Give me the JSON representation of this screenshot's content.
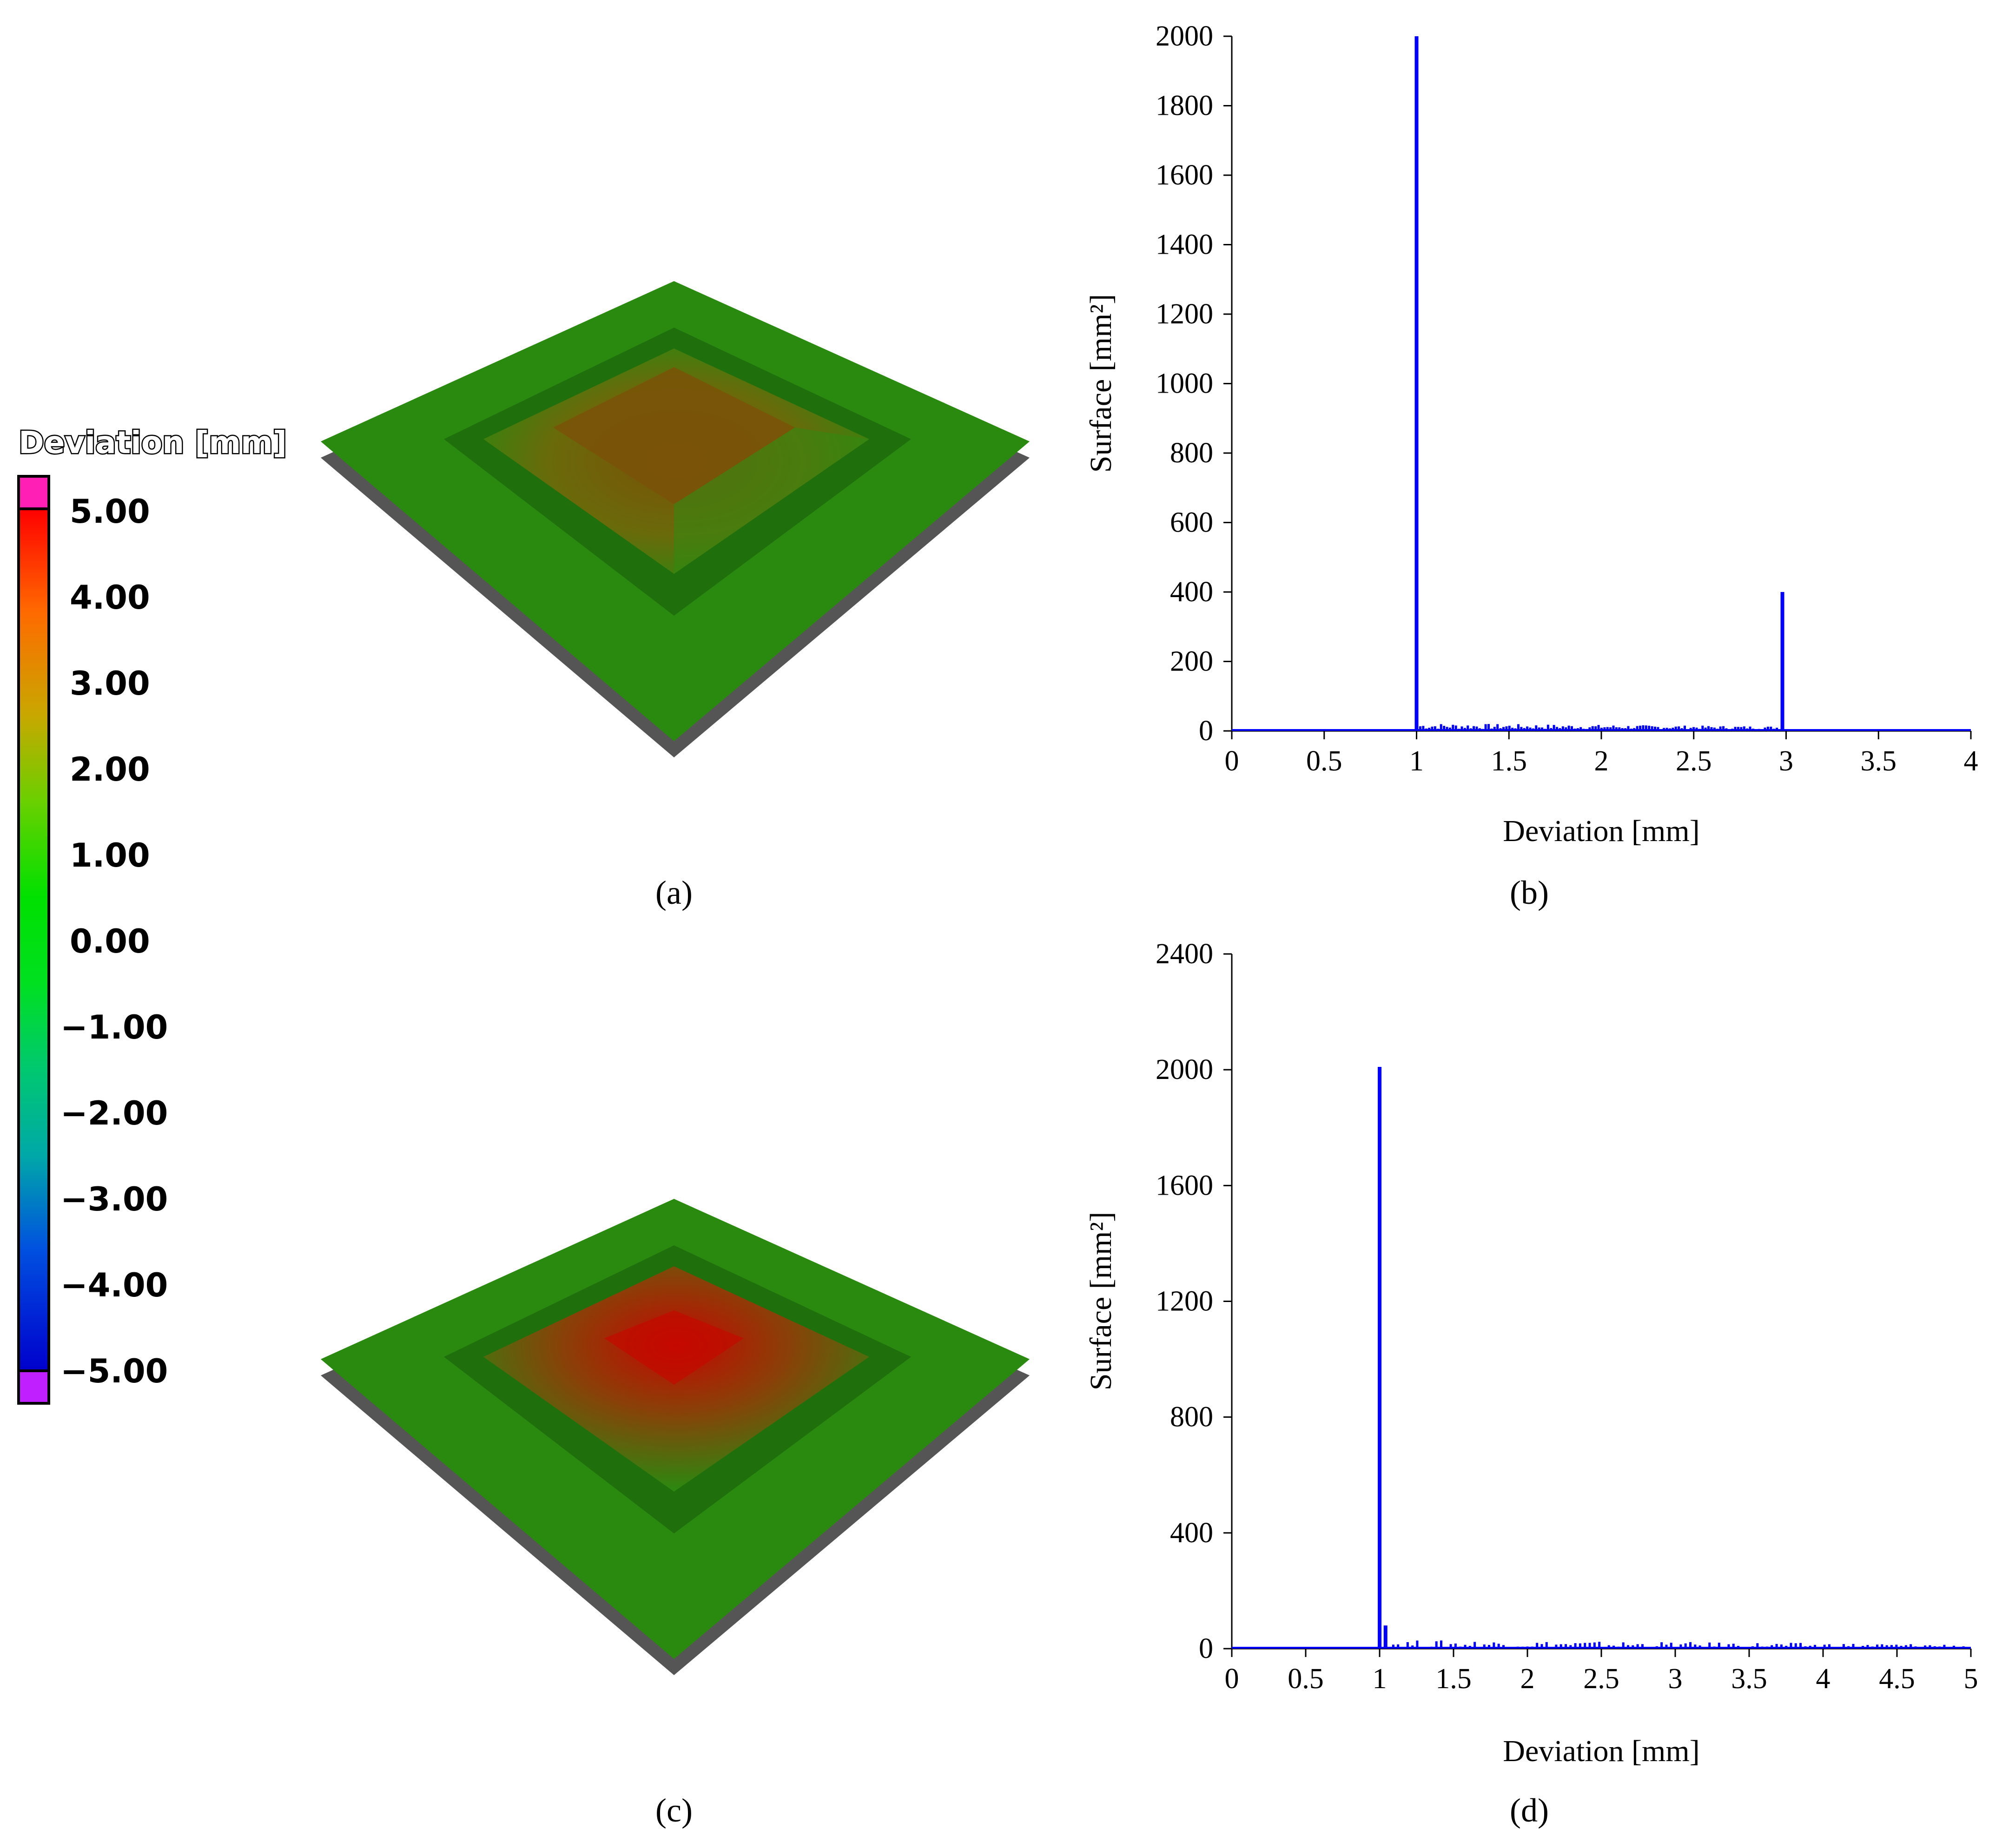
{
  "colorbar": {
    "title": "Deviation [mm]",
    "ticks": [
      "5.00",
      "4.00",
      "3.00",
      "2.00",
      "1.00",
      "0.00",
      "−1.00",
      "−2.00",
      "−3.00",
      "−4.00",
      "−5.00"
    ],
    "colors": {
      "over": "#ff1fb4",
      "under": "#c020ff",
      "gradient": [
        "#ff0000",
        "#ff7a00",
        "#c8b400",
        "#5fd000",
        "#00e000",
        "#00e040",
        "#00c880",
        "#0090c0",
        "#0040e0",
        "#0000d0"
      ]
    }
  },
  "panels": {
    "a": {
      "caption": "(a)",
      "surface_colors": {
        "plate": "#2a8a10",
        "edge": "#555555",
        "peak": "#7a5a08"
      }
    },
    "c": {
      "caption": "(c)",
      "surface_colors": {
        "plate": "#2a8a10",
        "edge": "#555555",
        "peak": "#c01005"
      }
    }
  },
  "chart_data": [
    {
      "panel": "b",
      "caption": "(b)",
      "type": "bar",
      "xlabel": "Deviation [mm]",
      "ylabel": "Surface [mm²]",
      "xlim": [
        0,
        4
      ],
      "ylim": [
        0,
        2000
      ],
      "xticks": [
        "0",
        "0.5",
        "1",
        "1.5",
        "2",
        "2.5",
        "3",
        "3.5",
        "4"
      ],
      "yticks": [
        "0",
        "200",
        "400",
        "600",
        "800",
        "1000",
        "1200",
        "1400",
        "1600",
        "1800",
        "2000"
      ],
      "color": "#0000ff",
      "spikes": [
        {
          "x": 1.0,
          "y": 2000
        },
        {
          "x": 2.98,
          "y": 400
        }
      ],
      "baseline_noise": {
        "x_start": 1.02,
        "x_end": 2.95,
        "y_min": 5,
        "y_max": 22
      }
    },
    {
      "panel": "d",
      "caption": "(d)",
      "type": "bar",
      "xlabel": "Deviation [mm]",
      "ylabel": "Surface [mm²]",
      "xlim": [
        0,
        5
      ],
      "ylim": [
        0,
        2400
      ],
      "xticks": [
        "0",
        "0.5",
        "1",
        "1.5",
        "2",
        "2.5",
        "3",
        "3.5",
        "4",
        "4.5",
        "5"
      ],
      "yticks": [
        "0",
        "400",
        "800",
        "1200",
        "1600",
        "2000",
        "2400"
      ],
      "color": "#0000ff",
      "spikes": [
        {
          "x": 1.0,
          "y": 2010
        },
        {
          "x": 1.04,
          "y": 80
        }
      ],
      "baseline_noise": {
        "x_start": 1.06,
        "x_end": 4.95,
        "y_min": 2,
        "y_max": 30
      }
    }
  ]
}
